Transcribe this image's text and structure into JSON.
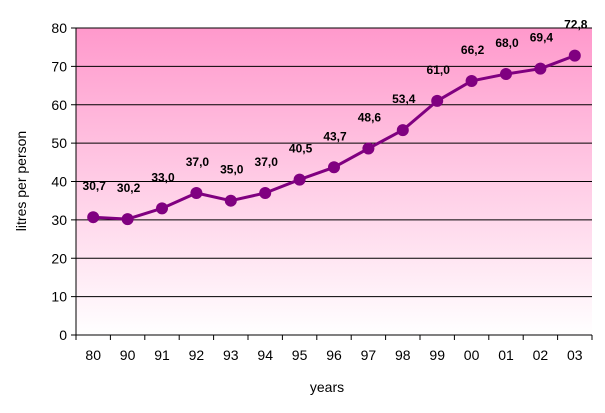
{
  "chart_data": {
    "type": "line",
    "categories": [
      "80",
      "90",
      "91",
      "92",
      "93",
      "94",
      "95",
      "96",
      "97",
      "98",
      "99",
      "00",
      "01",
      "02",
      "03"
    ],
    "series": [
      {
        "values": [
          30.7,
          30.2,
          33.0,
          37.0,
          35.0,
          37.0,
          40.5,
          43.7,
          48.6,
          53.4,
          61.0,
          66.2,
          68.0,
          69.4,
          72.8
        ],
        "data_labels": [
          "30,7",
          "30,2",
          "33,0",
          "37,0",
          "35,0",
          "37,0",
          "40,5",
          "43,7",
          "48,6",
          "53,4",
          "61,0",
          "66,2",
          "68,0",
          "69,4",
          "72,8"
        ],
        "color": "#800080"
      }
    ],
    "xlabel": "years",
    "ylabel": "litres per person",
    "ylim": [
      0,
      80
    ],
    "yticks": [
      "0",
      "10",
      "20",
      "30",
      "40",
      "50",
      "60",
      "70",
      "80"
    ],
    "grid": true,
    "legend": "none",
    "background_gradient": [
      "#ff99cc",
      "#ffffff"
    ]
  }
}
